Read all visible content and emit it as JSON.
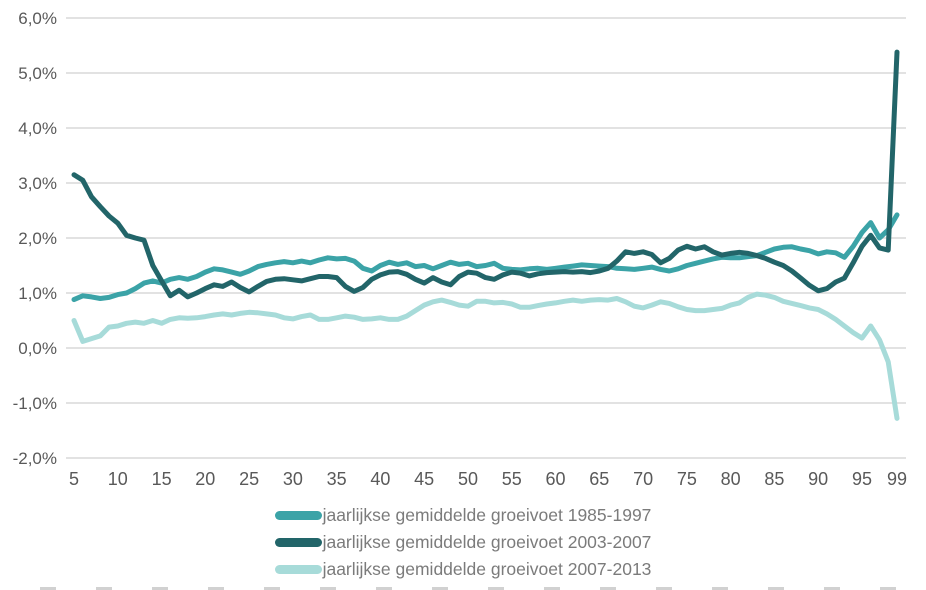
{
  "chart_data": {
    "type": "line",
    "title": "",
    "xlabel": "",
    "ylabel": "",
    "x_min": 5,
    "x_max": 99,
    "ylim": [
      -2,
      6
    ],
    "grid": true,
    "legend_position": "bottom",
    "grid_color": "#d8d8d8",
    "axis_text_color": "#595959",
    "yticks": [
      6,
      5,
      4,
      3,
      2,
      1,
      0,
      -1,
      -2
    ],
    "ytick_labels": [
      "6,0%",
      "5,0%",
      "4,0%",
      "3,0%",
      "2,0%",
      "1,0%",
      "0,0%",
      "-1,0%",
      "-2,0%"
    ],
    "xticks": [
      5,
      10,
      15,
      20,
      25,
      30,
      35,
      40,
      45,
      50,
      55,
      60,
      65,
      70,
      75,
      80,
      85,
      90,
      95,
      99
    ],
    "xtick_labels": [
      "5",
      "10",
      "15",
      "20",
      "25",
      "30",
      "35",
      "40",
      "45",
      "50",
      "55",
      "60",
      "65",
      "70",
      "75",
      "80",
      "85",
      "90",
      "95",
      "99"
    ],
    "x": [
      5,
      6,
      7,
      8,
      9,
      10,
      11,
      12,
      13,
      14,
      15,
      16,
      17,
      18,
      19,
      20,
      21,
      22,
      23,
      24,
      25,
      26,
      27,
      28,
      29,
      30,
      31,
      32,
      33,
      34,
      35,
      36,
      37,
      38,
      39,
      40,
      41,
      42,
      43,
      44,
      45,
      46,
      47,
      48,
      49,
      50,
      51,
      52,
      53,
      54,
      55,
      56,
      57,
      58,
      59,
      60,
      61,
      62,
      63,
      64,
      65,
      66,
      67,
      68,
      69,
      70,
      71,
      72,
      73,
      74,
      75,
      76,
      77,
      78,
      79,
      80,
      81,
      82,
      83,
      84,
      85,
      86,
      87,
      88,
      89,
      90,
      91,
      92,
      93,
      94,
      95,
      96,
      97,
      98,
      99
    ],
    "series": [
      {
        "name": "jaarlijkse gemiddelde groeivoet 1985-1997",
        "color": "#3ba3a7",
        "values": [
          0.88,
          0.95,
          0.93,
          0.9,
          0.92,
          0.97,
          1.0,
          1.08,
          1.18,
          1.22,
          1.18,
          1.25,
          1.28,
          1.25,
          1.3,
          1.38,
          1.44,
          1.42,
          1.38,
          1.34,
          1.4,
          1.48,
          1.52,
          1.55,
          1.57,
          1.55,
          1.58,
          1.55,
          1.6,
          1.64,
          1.62,
          1.63,
          1.58,
          1.45,
          1.4,
          1.5,
          1.56,
          1.52,
          1.55,
          1.48,
          1.5,
          1.44,
          1.5,
          1.56,
          1.52,
          1.54,
          1.48,
          1.5,
          1.54,
          1.45,
          1.43,
          1.42,
          1.44,
          1.45,
          1.43,
          1.45,
          1.47,
          1.49,
          1.51,
          1.5,
          1.49,
          1.48,
          1.45,
          1.44,
          1.43,
          1.45,
          1.47,
          1.43,
          1.4,
          1.44,
          1.5,
          1.54,
          1.58,
          1.62,
          1.65,
          1.64,
          1.64,
          1.66,
          1.68,
          1.74,
          1.8,
          1.83,
          1.84,
          1.8,
          1.77,
          1.71,
          1.75,
          1.73,
          1.65,
          1.85,
          2.1,
          2.28,
          2.0,
          2.15,
          2.42
        ]
      },
      {
        "name": "jaarlijkse gemiddelde groeivoet 2003-2007",
        "color": "#226569",
        "values": [
          3.15,
          3.05,
          2.75,
          2.57,
          2.4,
          2.27,
          2.05,
          2.0,
          1.96,
          1.5,
          1.22,
          0.95,
          1.05,
          0.93,
          1.0,
          1.08,
          1.15,
          1.12,
          1.2,
          1.1,
          1.02,
          1.12,
          1.21,
          1.25,
          1.26,
          1.24,
          1.22,
          1.26,
          1.3,
          1.3,
          1.28,
          1.12,
          1.03,
          1.1,
          1.25,
          1.33,
          1.38,
          1.39,
          1.34,
          1.25,
          1.18,
          1.28,
          1.2,
          1.15,
          1.3,
          1.38,
          1.36,
          1.28,
          1.25,
          1.33,
          1.38,
          1.36,
          1.31,
          1.35,
          1.37,
          1.38,
          1.39,
          1.38,
          1.39,
          1.37,
          1.4,
          1.45,
          1.58,
          1.75,
          1.72,
          1.75,
          1.7,
          1.55,
          1.63,
          1.78,
          1.85,
          1.8,
          1.84,
          1.75,
          1.69,
          1.72,
          1.74,
          1.72,
          1.68,
          1.63,
          1.56,
          1.5,
          1.4,
          1.27,
          1.14,
          1.04,
          1.08,
          1.2,
          1.27,
          1.55,
          1.85,
          2.05,
          1.82,
          1.78,
          5.38
        ]
      },
      {
        "name": "jaarlijkse gemiddelde groeivoet 2007-2013",
        "color": "#a7dbd9",
        "values": [
          0.5,
          0.12,
          0.17,
          0.22,
          0.38,
          0.4,
          0.45,
          0.47,
          0.45,
          0.5,
          0.45,
          0.52,
          0.55,
          0.54,
          0.55,
          0.57,
          0.6,
          0.62,
          0.6,
          0.63,
          0.65,
          0.64,
          0.62,
          0.6,
          0.55,
          0.53,
          0.57,
          0.6,
          0.52,
          0.52,
          0.55,
          0.58,
          0.56,
          0.52,
          0.53,
          0.55,
          0.52,
          0.52,
          0.58,
          0.68,
          0.78,
          0.84,
          0.87,
          0.83,
          0.78,
          0.76,
          0.85,
          0.85,
          0.82,
          0.83,
          0.8,
          0.74,
          0.74,
          0.77,
          0.8,
          0.82,
          0.85,
          0.87,
          0.85,
          0.87,
          0.88,
          0.87,
          0.9,
          0.84,
          0.76,
          0.73,
          0.78,
          0.84,
          0.81,
          0.75,
          0.7,
          0.68,
          0.68,
          0.7,
          0.72,
          0.78,
          0.82,
          0.92,
          0.98,
          0.96,
          0.92,
          0.85,
          0.81,
          0.77,
          0.73,
          0.7,
          0.62,
          0.52,
          0.4,
          0.28,
          0.18,
          0.4,
          0.15,
          -0.25,
          -1.28
        ]
      }
    ]
  }
}
